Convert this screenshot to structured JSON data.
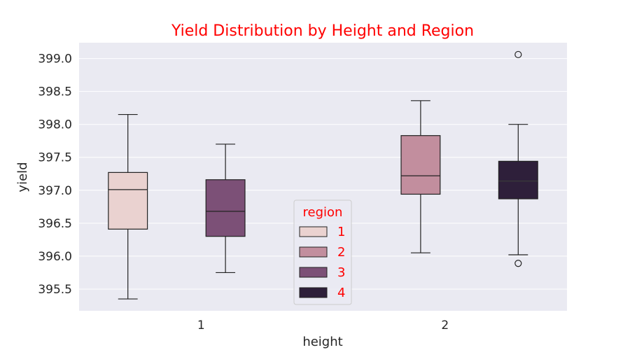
{
  "chart_data": {
    "type": "box",
    "title": "Yield Distribution by Height and Region",
    "title_color": "#ff0000",
    "xlabel": "height",
    "ylabel": "yield",
    "categories": [
      "1",
      "2"
    ],
    "ylim": [
      395.17,
      399.24
    ],
    "yticks": [
      "395.5",
      "396.0",
      "396.5",
      "397.0",
      "397.5",
      "398.0",
      "398.5",
      "399.0"
    ],
    "grid": true,
    "background": "#eaeaf2",
    "legend": {
      "title": "region",
      "placement": "lower-center",
      "text_color": "#ff0000",
      "entries": [
        "1",
        "2",
        "3",
        "4"
      ]
    },
    "series": [
      {
        "name": "1",
        "color": "#ead2d0",
        "boxes": [
          {
            "category": "1",
            "whisker_low": 395.35,
            "q1": 396.41,
            "median": 397.01,
            "q3": 397.27,
            "whisker_high": 398.15,
            "outliers": []
          }
        ]
      },
      {
        "name": "2",
        "color": "#c28e9e",
        "boxes": [
          {
            "category": "2",
            "whisker_low": 396.05,
            "q1": 396.94,
            "median": 397.22,
            "q3": 397.83,
            "whisker_high": 398.36,
            "outliers": []
          }
        ]
      },
      {
        "name": "3",
        "color": "#7c5077",
        "boxes": [
          {
            "category": "1",
            "whisker_low": 395.75,
            "q1": 396.3,
            "median": 396.68,
            "q3": 397.16,
            "whisker_high": 397.7,
            "outliers": []
          }
        ]
      },
      {
        "name": "4",
        "color": "#2e1f3a",
        "boxes": [
          {
            "category": "2",
            "whisker_low": 396.02,
            "q1": 396.87,
            "median": 397.14,
            "q3": 397.44,
            "whisker_high": 398.0,
            "outliers": [
              399.06,
              395.89
            ]
          }
        ]
      }
    ]
  }
}
